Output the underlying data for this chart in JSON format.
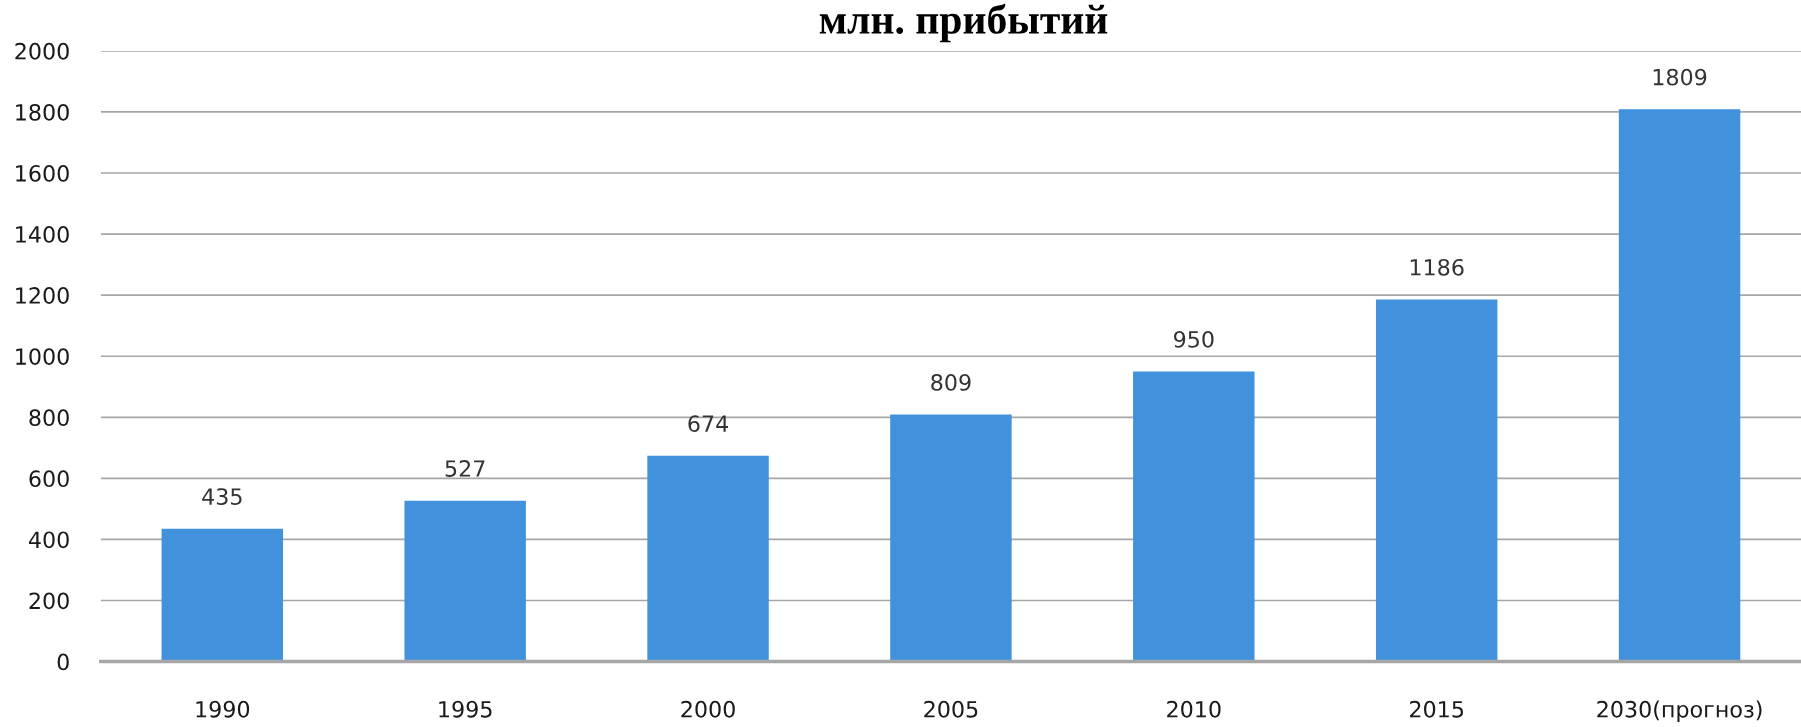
{
  "chart_data": {
    "type": "bar",
    "title": "млн. прибытий",
    "categories": [
      "1990",
      "1995",
      "2000",
      "2005",
      "2010",
      "2015",
      "2030(прогноз)"
    ],
    "values": [
      435,
      527,
      674,
      809,
      950,
      1186,
      1809
    ],
    "color": "#4191dc",
    "ylim": [
      0,
      2000
    ],
    "yticks": [
      0,
      200,
      400,
      600,
      800,
      1000,
      1200,
      1400,
      1600,
      1800,
      2000
    ],
    "grid": "y",
    "data_labels": true
  }
}
